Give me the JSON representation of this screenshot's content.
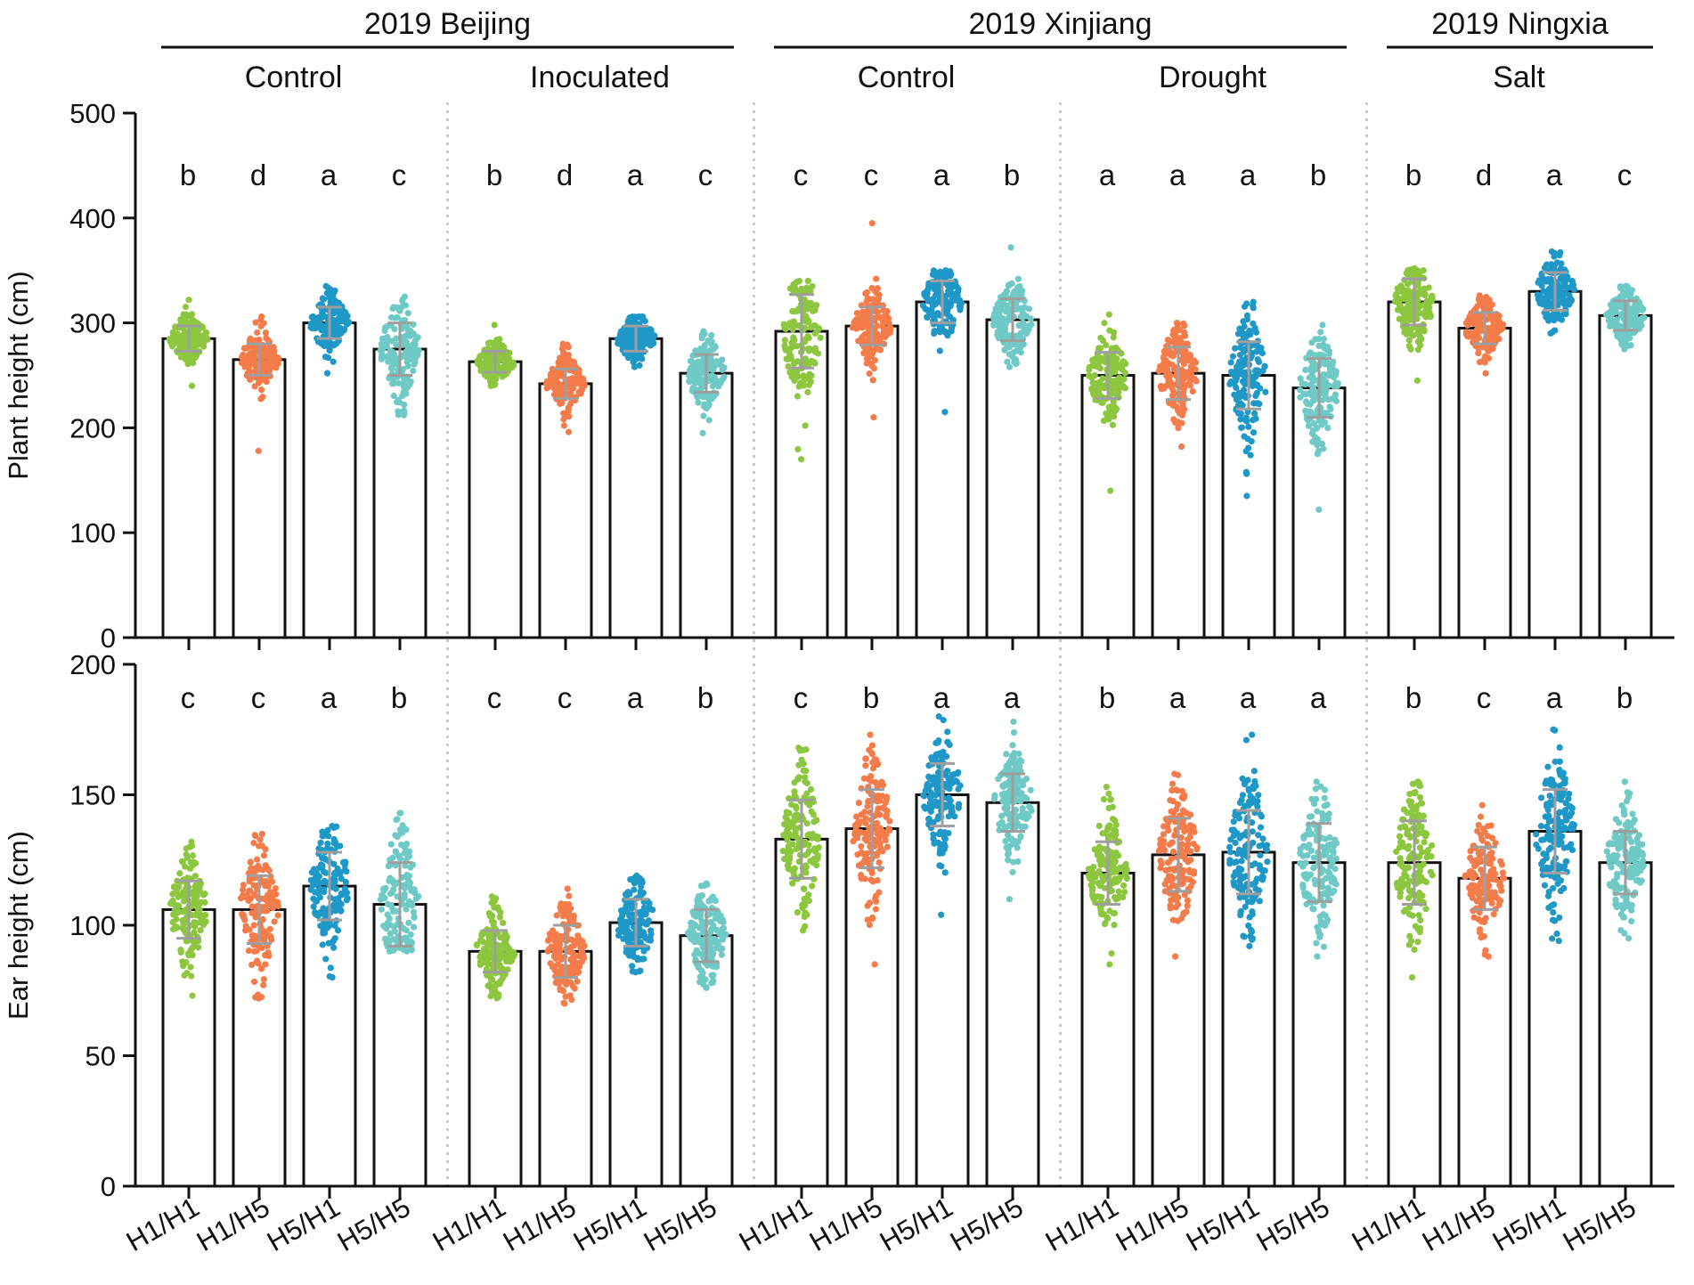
{
  "chart_data": {
    "type": "bar",
    "subtype": "bar-with-scatter-points-and-sd-error-bars",
    "environments": [
      {
        "name": "2019 Beijing",
        "conditions": [
          "Control",
          "Inoculated"
        ]
      },
      {
        "name": "2019 Xinjiang",
        "conditions": [
          "Control",
          "Drought"
        ]
      },
      {
        "name": "2019 Ningxia",
        "conditions": [
          "Salt"
        ]
      }
    ],
    "genotypes": [
      "H1/H1",
      "H1/H5",
      "H5/H1",
      "H5/H5"
    ],
    "series_colors": [
      "#8dc63f",
      "#f47c4a",
      "#1f98c8",
      "#6fcac6"
    ],
    "panels": [
      {
        "id": "plant-height",
        "ylabel": "Plant height (cm)",
        "ylim": [
          0,
          500
        ],
        "yticks": [
          0,
          100,
          200,
          300,
          400,
          500
        ],
        "groups": [
          {
            "condition": "Control",
            "means": [
              285,
              265,
              300,
              275
            ],
            "sd": [
              12,
              15,
              15,
              25
            ],
            "ranges": [
              [
                240,
                322
              ],
              [
                178,
                306
              ],
              [
                252,
                335
              ],
              [
                212,
                325
              ]
            ],
            "letters": [
              "b",
              "d",
              "a",
              "c"
            ]
          },
          {
            "condition": "Inoculated",
            "means": [
              263,
              242,
              285,
              252
            ],
            "sd": [
              10,
              14,
              12,
              18
            ],
            "ranges": [
              [
                240,
                298
              ],
              [
                196,
                280
              ],
              [
                258,
                306
              ],
              [
                195,
                292
              ]
            ],
            "letters": [
              "b",
              "d",
              "a",
              "c"
            ]
          },
          {
            "condition": "Control",
            "means": [
              292,
              297,
              320,
              303
            ],
            "sd": [
              35,
              18,
              20,
              20
            ],
            "ranges": [
              [
                170,
                340
              ],
              [
                210,
                395
              ],
              [
                215,
                350
              ],
              [
                258,
                372
              ]
            ],
            "letters": [
              "c",
              "c",
              "a",
              "b"
            ]
          },
          {
            "condition": "Drought",
            "means": [
              250,
              252,
              250,
              238
            ],
            "sd": [
              22,
              25,
              32,
              28
            ],
            "ranges": [
              [
                140,
                308
              ],
              [
                182,
                300
              ],
              [
                135,
                320
              ],
              [
                122,
                298
              ]
            ],
            "letters": [
              "a",
              "a",
              "a",
              "b"
            ]
          },
          {
            "condition": "Salt",
            "means": [
              320,
              295,
              330,
              307
            ],
            "sd": [
              22,
              15,
              18,
              14
            ],
            "ranges": [
              [
                245,
                352
              ],
              [
                252,
                326
              ],
              [
                290,
                368
              ],
              [
                275,
                335
              ]
            ],
            "letters": [
              "b",
              "d",
              "a",
              "c"
            ]
          }
        ]
      },
      {
        "id": "ear-height",
        "ylabel": "Ear height (cm)",
        "ylim": [
          0,
          200
        ],
        "yticks": [
          0,
          50,
          100,
          150,
          200
        ],
        "groups": [
          {
            "condition": "Control",
            "means": [
              106,
              106,
              115,
              108
            ],
            "sd": [
              11,
              13,
              13,
              16
            ],
            "ranges": [
              [
                73,
                132
              ],
              [
                72,
                135
              ],
              [
                80,
                138
              ],
              [
                90,
                143
              ]
            ],
            "letters": [
              "c",
              "c",
              "a",
              "b"
            ]
          },
          {
            "condition": "Inoculated",
            "means": [
              90,
              90,
              101,
              96
            ],
            "sd": [
              8,
              10,
              9,
              10
            ],
            "ranges": [
              [
                72,
                111
              ],
              [
                70,
                114
              ],
              [
                82,
                119
              ],
              [
                76,
                116
              ]
            ],
            "letters": [
              "c",
              "c",
              "a",
              "b"
            ]
          },
          {
            "condition": "Control",
            "means": [
              133,
              137,
              150,
              147
            ],
            "sd": [
              15,
              15,
              12,
              11
            ],
            "ranges": [
              [
                98,
                168
              ],
              [
                85,
                173
              ],
              [
                104,
                180
              ],
              [
                110,
                178
              ]
            ],
            "letters": [
              "c",
              "b",
              "a",
              "a"
            ]
          },
          {
            "condition": "Drought",
            "means": [
              120,
              127,
              128,
              124
            ],
            "sd": [
              12,
              14,
              16,
              15
            ],
            "ranges": [
              [
                85,
                153
              ],
              [
                88,
                158
              ],
              [
                92,
                173
              ],
              [
                88,
                155
              ]
            ],
            "letters": [
              "b",
              "a",
              "a",
              "a"
            ]
          },
          {
            "condition": "Salt",
            "means": [
              124,
              118,
              136,
              124
            ],
            "sd": [
              16,
              12,
              16,
              12
            ],
            "ranges": [
              [
                80,
                155
              ],
              [
                88,
                146
              ],
              [
                94,
                175
              ],
              [
                95,
                155
              ]
            ],
            "letters": [
              "b",
              "c",
              "a",
              "b"
            ]
          }
        ]
      }
    ]
  }
}
